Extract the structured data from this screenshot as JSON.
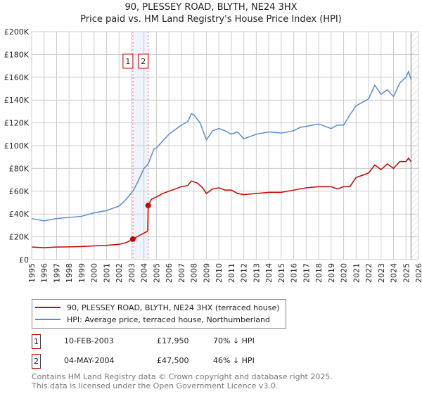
{
  "chart_data": {
    "type": "line",
    "title": "90, PLESSEY ROAD, BLYTH, NE24 3HX",
    "subtitle": "Price paid vs. HM Land Registry's House Price Index (HPI)",
    "xlim": [
      1995,
      2026
    ],
    "ylim": [
      0,
      200000
    ],
    "x_ticks": [
      "1995",
      "1996",
      "1997",
      "1998",
      "1999",
      "2000",
      "2001",
      "2002",
      "2003",
      "2004",
      "2005",
      "2006",
      "2007",
      "2008",
      "2009",
      "2010",
      "2011",
      "2012",
      "2013",
      "2014",
      "2015",
      "2016",
      "2017",
      "2018",
      "2019",
      "2020",
      "2021",
      "2022",
      "2023",
      "2024",
      "2025",
      "2026"
    ],
    "y_ticks": [
      {
        "v": 0,
        "l": "£0"
      },
      {
        "v": 20000,
        "l": "£20K"
      },
      {
        "v": 40000,
        "l": "£40K"
      },
      {
        "v": 60000,
        "l": "£60K"
      },
      {
        "v": 80000,
        "l": "£80K"
      },
      {
        "v": 100000,
        "l": "£100K"
      },
      {
        "v": 120000,
        "l": "£120K"
      },
      {
        "v": 140000,
        "l": "£140K"
      },
      {
        "v": 160000,
        "l": "£160K"
      },
      {
        "v": 180000,
        "l": "£180K"
      },
      {
        "v": 200000,
        "l": "£200K"
      }
    ],
    "grid": true,
    "series": [
      {
        "name": "90, PLESSEY ROAD, BLYTH, NE24 3HX (terraced house)",
        "color": "#cc0000",
        "x": [
          1995,
          1996,
          1997,
          1998,
          1999,
          2000,
          2001,
          2002,
          2002.6,
          2003.11,
          2003.6,
          2004.3,
          2004.34,
          2004.6,
          2005,
          2005.5,
          2006,
          2007,
          2007.5,
          2007.8,
          2008.3,
          2008.7,
          2009,
          2009.5,
          2010,
          2010.5,
          2011,
          2011.5,
          2012,
          2013,
          2014,
          2015,
          2016,
          2017,
          2018,
          2019,
          2019.5,
          2020,
          2020.5,
          2021,
          2021.5,
          2022,
          2022.5,
          2023,
          2023.5,
          2024,
          2024.5,
          2025,
          2025.2,
          2025.4
        ],
        "y": [
          11000,
          10500,
          11000,
          11200,
          11500,
          12000,
          12500,
          13500,
          15000,
          17950,
          21000,
          25000,
          47500,
          53000,
          55000,
          58000,
          60000,
          64000,
          65000,
          69000,
          67000,
          63000,
          58000,
          62000,
          63000,
          61000,
          61000,
          58000,
          57000,
          58000,
          59000,
          59000,
          61000,
          63000,
          64000,
          64000,
          62000,
          64000,
          64000,
          72000,
          74000,
          76000,
          83000,
          79000,
          84000,
          80000,
          86000,
          86000,
          89000,
          86000
        ]
      },
      {
        "name": "HPI: Average price, terraced house, Northumberland",
        "color": "#5b8bd0",
        "x": [
          1995,
          1996,
          1997,
          1998,
          1999,
          2000,
          2001,
          2002,
          2002.5,
          2003.11,
          2003.5,
          2004,
          2004.34,
          2004.8,
          2005,
          2005.5,
          2006,
          2007,
          2007.5,
          2007.8,
          2008,
          2008.5,
          2009,
          2009.5,
          2010,
          2010.5,
          2011,
          2011.5,
          2012,
          2012.5,
          2013,
          2014,
          2015,
          2016,
          2016.5,
          2017,
          2018,
          2019,
          2019.5,
          2020,
          2020.5,
          2021,
          2021.5,
          2022,
          2022.5,
          2023,
          2023.5,
          2024,
          2024.5,
          2025,
          2025.2,
          2025.4
        ],
        "y": [
          36000,
          34000,
          36000,
          37000,
          38000,
          41000,
          43000,
          47000,
          52000,
          60000,
          68000,
          80000,
          84000,
          97000,
          98000,
          104000,
          110000,
          118000,
          121000,
          128000,
          127000,
          120000,
          105000,
          113000,
          115000,
          113000,
          110000,
          112000,
          106000,
          108000,
          110000,
          112000,
          111000,
          113000,
          116000,
          117000,
          119000,
          115000,
          118000,
          118000,
          127000,
          135000,
          138000,
          141000,
          153000,
          145000,
          149000,
          143000,
          155000,
          160000,
          165000,
          158000
        ]
      }
    ],
    "annotations": [
      {
        "label": "1",
        "x": 2003.11
      },
      {
        "label": "2",
        "x": 2004.34
      }
    ],
    "forecast_start": 2025.4
  },
  "legend": {
    "items": [
      {
        "label": "90, PLESSEY ROAD, BLYTH, NE24 3HX (terraced house)",
        "color": "#cc0000"
      },
      {
        "label": "HPI: Average price, terraced house, Northumberland",
        "color": "#5b8bd0"
      }
    ]
  },
  "transactions": [
    {
      "num": "1",
      "date": "10-FEB-2003",
      "price": "£17,950",
      "hpi": "70% ↓ HPI"
    },
    {
      "num": "2",
      "date": "04-MAY-2004",
      "price": "£47,500",
      "hpi": "46% ↓ HPI"
    }
  ],
  "footer": {
    "line1": "Contains HM Land Registry data © Crown copyright and database right 2025.",
    "line2": "This data is licensed under the Open Government Licence v3.0."
  }
}
